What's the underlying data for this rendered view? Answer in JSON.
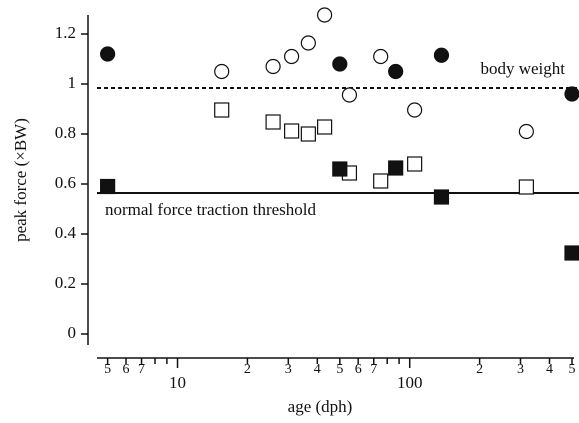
{
  "chart_data": {
    "type": "scatter",
    "x_label": "age (dph)",
    "y_label": "peak force (×BW)",
    "xscale": "log",
    "xlim": [
      4.5,
      510
    ],
    "ylim": [
      -0.044,
      1.276
    ],
    "xticks": [
      {
        "value": 5,
        "label": "5"
      },
      {
        "value": 6,
        "label": "6"
      },
      {
        "value": 7,
        "label": "7"
      },
      10,
      {
        "value": 20,
        "label": "2"
      },
      {
        "value": 30,
        "label": "3"
      },
      {
        "value": 40,
        "label": "4"
      },
      {
        "value": 50,
        "label": "5"
      },
      {
        "value": 60,
        "label": "6"
      },
      {
        "value": 70,
        "label": "7"
      },
      100,
      {
        "value": 200,
        "label": "2"
      },
      {
        "value": 300,
        "label": "3"
      },
      {
        "value": 400,
        "label": "4"
      },
      {
        "value": 500,
        "label": "5"
      }
    ],
    "xminor_ticks": [
      8,
      9,
      80,
      90
    ],
    "yticks": [
      0,
      0.2,
      0.4,
      0.6,
      0.8,
      1.0,
      1.2
    ],
    "reference_lines": [
      {
        "label": "body weight",
        "value": 0.984,
        "style": "dashed"
      },
      {
        "label": "normal force traction threshold",
        "value": 0.564,
        "style": "solid"
      }
    ],
    "series": [
      {
        "marker": "circle",
        "filled": true,
        "color": "#111111",
        "x": [
          5,
          50,
          87,
          137,
          500
        ],
        "values": [
          1.12,
          1.08,
          1.05,
          1.115,
          0.96
        ]
      },
      {
        "marker": "circle",
        "filled": false,
        "color": "#111111",
        "x": [
          15.5,
          25.8,
          31,
          36.6,
          43,
          55,
          75,
          105,
          318
        ],
        "values": [
          1.05,
          1.07,
          1.11,
          1.164,
          1.276,
          0.956,
          1.11,
          0.896,
          0.81
        ]
      },
      {
        "marker": "square",
        "filled": false,
        "color": "#111111",
        "x": [
          15.5,
          25.8,
          31,
          36.6,
          43,
          55,
          75,
          105,
          318
        ],
        "values": [
          0.896,
          0.848,
          0.812,
          0.8,
          0.828,
          0.644,
          0.612,
          0.68,
          0.588
        ]
      },
      {
        "marker": "square",
        "filled": true,
        "color": "#111111",
        "x": [
          5,
          50,
          87,
          137,
          500
        ],
        "values": [
          0.59,
          0.66,
          0.664,
          0.548,
          0.324
        ]
      }
    ]
  }
}
